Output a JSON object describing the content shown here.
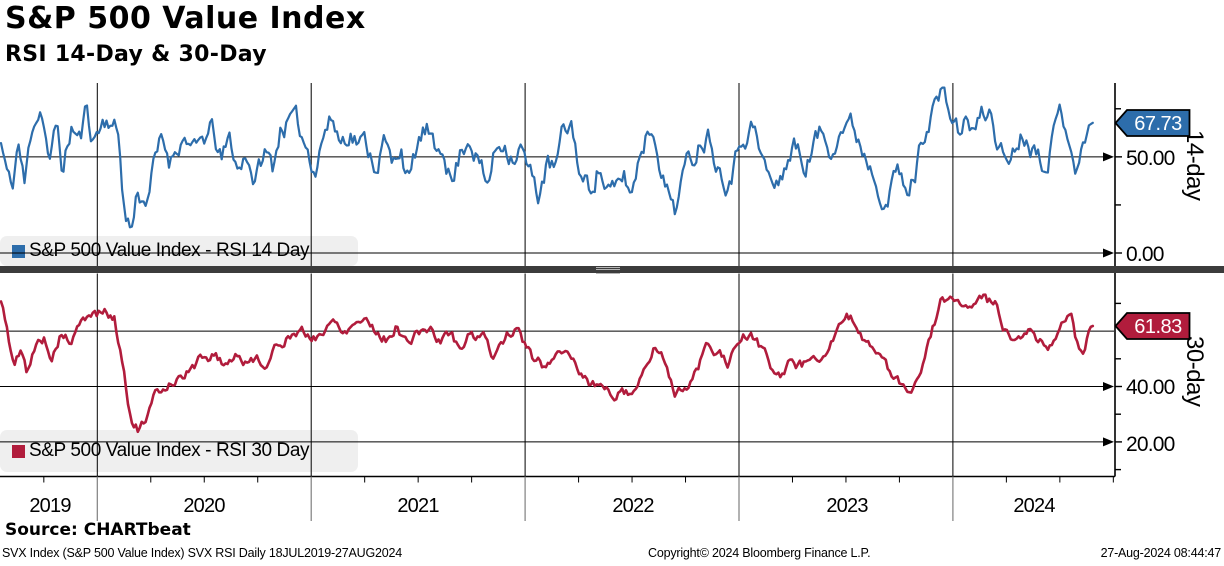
{
  "header": {
    "title": "S&P 500 Value Index",
    "subtitle": "RSI 14-Day & 30-Day"
  },
  "source_label": "Source: CHARTbeat",
  "footer": {
    "left": "SVX Index (S&P 500 Value Index) SVX RSI  Daily 18JUL2019-27AUG2024",
    "center": "Copyright© 2024 Bloomberg Finance L.P.",
    "right": "27-Aug-2024 08:44:47"
  },
  "x_axis": {
    "years": [
      "2019",
      "2020",
      "2021",
      "2022",
      "2023",
      "2024"
    ],
    "gridline_years": [
      2020,
      2021,
      2022,
      2023,
      2024
    ]
  },
  "panels": [
    {
      "side_label": "14-day",
      "legend": "S&P 500 Value Index - RSI 14 Day",
      "badge": "67.73",
      "color": "#2d6dab",
      "tick_labels": [
        "50.00",
        "0.00"
      ]
    },
    {
      "side_label": "30-day",
      "legend": "S&P 500 Value Index - RSI 30 Day",
      "badge": "61.83",
      "color": "#b11c3c",
      "tick_labels": [
        "40.00",
        "20.00"
      ]
    }
  ],
  "chart_data": [
    {
      "type": "line",
      "name": "S&P 500 Value Index - RSI 14 Day",
      "panel": "top",
      "color": "#2d6dab",
      "x_unit": "decimal_year",
      "x_range": [
        2019.55,
        2024.654
      ],
      "ylim": [
        -7,
        92
      ],
      "grid": true,
      "legend_position": "bottom-left",
      "labeled_ticks": [
        {
          "value": 50,
          "label": "50.00"
        },
        {
          "value": 0,
          "label": "0.00"
        }
      ],
      "extra_gridlines": [],
      "minor_ticks": [
        25,
        75
      ],
      "last_value": 67.73,
      "anchors": [
        [
          2019.55,
          57
        ],
        [
          2019.58,
          40
        ],
        [
          2019.6,
          30
        ],
        [
          2019.63,
          58
        ],
        [
          2019.66,
          34
        ],
        [
          2019.7,
          70
        ],
        [
          2019.74,
          78
        ],
        [
          2019.78,
          46
        ],
        [
          2019.81,
          66
        ],
        [
          2019.84,
          42
        ],
        [
          2019.88,
          66
        ],
        [
          2019.92,
          58
        ],
        [
          2019.95,
          74
        ],
        [
          2019.98,
          60
        ],
        [
          2020.02,
          68
        ],
        [
          2020.06,
          72
        ],
        [
          2020.1,
          60
        ],
        [
          2020.13,
          20
        ],
        [
          2020.16,
          13
        ],
        [
          2020.19,
          34
        ],
        [
          2020.22,
          27
        ],
        [
          2020.26,
          44
        ],
        [
          2020.3,
          56
        ],
        [
          2020.34,
          48
        ],
        [
          2020.38,
          60
        ],
        [
          2020.42,
          63
        ],
        [
          2020.46,
          50
        ],
        [
          2020.5,
          58
        ],
        [
          2020.54,
          62
        ],
        [
          2020.58,
          46
        ],
        [
          2020.62,
          57
        ],
        [
          2020.66,
          42
        ],
        [
          2020.7,
          53
        ],
        [
          2020.74,
          38
        ],
        [
          2020.78,
          52
        ],
        [
          2020.82,
          44
        ],
        [
          2020.86,
          68
        ],
        [
          2020.9,
          70
        ],
        [
          2020.94,
          62
        ],
        [
          2020.98,
          55
        ],
        [
          2021.02,
          48
        ],
        [
          2021.06,
          66
        ],
        [
          2021.1,
          70
        ],
        [
          2021.14,
          58
        ],
        [
          2021.18,
          67
        ],
        [
          2021.22,
          60
        ],
        [
          2021.26,
          55
        ],
        [
          2021.3,
          48
        ],
        [
          2021.34,
          60
        ],
        [
          2021.38,
          42
        ],
        [
          2021.42,
          58
        ],
        [
          2021.46,
          36
        ],
        [
          2021.5,
          56
        ],
        [
          2021.54,
          63
        ],
        [
          2021.58,
          46
        ],
        [
          2021.62,
          58
        ],
        [
          2021.66,
          38
        ],
        [
          2021.7,
          54
        ],
        [
          2021.74,
          64
        ],
        [
          2021.78,
          52
        ],
        [
          2021.82,
          33
        ],
        [
          2021.86,
          52
        ],
        [
          2021.9,
          60
        ],
        [
          2021.94,
          55
        ],
        [
          2021.98,
          58
        ],
        [
          2022.02,
          40
        ],
        [
          2022.06,
          30
        ],
        [
          2022.1,
          46
        ],
        [
          2022.14,
          42
        ],
        [
          2022.18,
          60
        ],
        [
          2022.22,
          65
        ],
        [
          2022.26,
          40
        ],
        [
          2022.3,
          32
        ],
        [
          2022.34,
          48
        ],
        [
          2022.38,
          36
        ],
        [
          2022.42,
          28
        ],
        [
          2022.46,
          38
        ],
        [
          2022.5,
          30
        ],
        [
          2022.54,
          55
        ],
        [
          2022.58,
          68
        ],
        [
          2022.62,
          60
        ],
        [
          2022.66,
          35
        ],
        [
          2022.7,
          26
        ],
        [
          2022.74,
          42
        ],
        [
          2022.78,
          48
        ],
        [
          2022.82,
          62
        ],
        [
          2022.86,
          66
        ],
        [
          2022.9,
          50
        ],
        [
          2022.94,
          44
        ],
        [
          2022.98,
          52
        ],
        [
          2023.02,
          66
        ],
        [
          2023.06,
          70
        ],
        [
          2023.1,
          52
        ],
        [
          2023.14,
          38
        ],
        [
          2023.18,
          32
        ],
        [
          2023.22,
          48
        ],
        [
          2023.26,
          58
        ],
        [
          2023.3,
          44
        ],
        [
          2023.34,
          56
        ],
        [
          2023.38,
          62
        ],
        [
          2023.42,
          55
        ],
        [
          2023.46,
          68
        ],
        [
          2023.5,
          72
        ],
        [
          2023.54,
          64
        ],
        [
          2023.58,
          56
        ],
        [
          2023.62,
          48
        ],
        [
          2023.66,
          40
        ],
        [
          2023.7,
          34
        ],
        [
          2023.74,
          45
        ],
        [
          2023.78,
          28
        ],
        [
          2023.82,
          40
        ],
        [
          2023.86,
          62
        ],
        [
          2023.9,
          78
        ],
        [
          2023.94,
          83
        ],
        [
          2023.98,
          75
        ],
        [
          2024.02,
          62
        ],
        [
          2024.06,
          68
        ],
        [
          2024.1,
          64
        ],
        [
          2024.14,
          70
        ],
        [
          2024.18,
          72
        ],
        [
          2024.22,
          55
        ],
        [
          2024.26,
          48
        ],
        [
          2024.3,
          60
        ],
        [
          2024.34,
          65
        ],
        [
          2024.38,
          58
        ],
        [
          2024.42,
          52
        ],
        [
          2024.46,
          62
        ],
        [
          2024.5,
          72
        ],
        [
          2024.54,
          66
        ],
        [
          2024.58,
          48
        ],
        [
          2024.61,
          55
        ],
        [
          2024.64,
          67.73
        ]
      ],
      "render": {
        "points": 560,
        "noise_amp": 5.5,
        "noise_decay": 0.78,
        "seed": 11,
        "clamp": [
          10,
          86
        ],
        "stroke_width": 2.2
      }
    },
    {
      "type": "line",
      "name": "S&P 500 Value Index - RSI 30 Day",
      "panel": "bottom",
      "color": "#b11c3c",
      "x_unit": "decimal_year",
      "x_range": [
        2019.55,
        2024.654
      ],
      "ylim": [
        3,
        79
      ],
      "grid": true,
      "legend_position": "bottom-left",
      "labeled_ticks": [
        {
          "value": 40,
          "label": "40.00"
        },
        {
          "value": 20,
          "label": "20.00"
        }
      ],
      "extra_gridlines": [
        60
      ],
      "minor_ticks": [
        10,
        30,
        50,
        70
      ],
      "last_value": 61.83,
      "anchors": [
        [
          2019.55,
          70
        ],
        [
          2019.58,
          60
        ],
        [
          2019.61,
          47
        ],
        [
          2019.64,
          52
        ],
        [
          2019.67,
          45
        ],
        [
          2019.71,
          54
        ],
        [
          2019.75,
          58
        ],
        [
          2019.79,
          51
        ],
        [
          2019.83,
          60
        ],
        [
          2019.87,
          56
        ],
        [
          2019.91,
          60
        ],
        [
          2019.95,
          64
        ],
        [
          2019.99,
          66
        ],
        [
          2020.04,
          67
        ],
        [
          2020.08,
          64
        ],
        [
          2020.12,
          48
        ],
        [
          2020.16,
          28
        ],
        [
          2020.19,
          25
        ],
        [
          2020.23,
          27
        ],
        [
          2020.27,
          35
        ],
        [
          2020.31,
          39
        ],
        [
          2020.35,
          43
        ],
        [
          2020.4,
          45
        ],
        [
          2020.45,
          47
        ],
        [
          2020.5,
          51
        ],
        [
          2020.55,
          52
        ],
        [
          2020.6,
          48
        ],
        [
          2020.65,
          53
        ],
        [
          2020.7,
          48
        ],
        [
          2020.75,
          51
        ],
        [
          2020.8,
          48
        ],
        [
          2020.85,
          56
        ],
        [
          2020.9,
          60
        ],
        [
          2020.95,
          59
        ],
        [
          2021.0,
          57
        ],
        [
          2021.05,
          60
        ],
        [
          2021.1,
          63
        ],
        [
          2021.15,
          61
        ],
        [
          2021.2,
          64
        ],
        [
          2021.25,
          66
        ],
        [
          2021.3,
          61
        ],
        [
          2021.35,
          58
        ],
        [
          2021.4,
          63
        ],
        [
          2021.45,
          56
        ],
        [
          2021.5,
          59
        ],
        [
          2021.55,
          62
        ],
        [
          2021.6,
          56
        ],
        [
          2021.65,
          60
        ],
        [
          2021.7,
          53
        ],
        [
          2021.75,
          60
        ],
        [
          2021.8,
          58
        ],
        [
          2021.85,
          51
        ],
        [
          2021.9,
          58
        ],
        [
          2021.95,
          61
        ],
        [
          2022.0,
          55
        ],
        [
          2022.05,
          48
        ],
        [
          2022.1,
          46
        ],
        [
          2022.15,
          52
        ],
        [
          2022.2,
          55
        ],
        [
          2022.25,
          47
        ],
        [
          2022.3,
          42
        ],
        [
          2022.35,
          40
        ],
        [
          2022.4,
          37
        ],
        [
          2022.45,
          40
        ],
        [
          2022.5,
          38
        ],
        [
          2022.55,
          46
        ],
        [
          2022.6,
          54
        ],
        [
          2022.65,
          49
        ],
        [
          2022.7,
          40
        ],
        [
          2022.75,
          38
        ],
        [
          2022.8,
          47
        ],
        [
          2022.85,
          54
        ],
        [
          2022.9,
          50
        ],
        [
          2022.95,
          48
        ],
        [
          2023.0,
          55
        ],
        [
          2023.05,
          59
        ],
        [
          2023.1,
          54
        ],
        [
          2023.15,
          47
        ],
        [
          2023.2,
          44
        ],
        [
          2023.25,
          50
        ],
        [
          2023.3,
          48
        ],
        [
          2023.35,
          52
        ],
        [
          2023.4,
          55
        ],
        [
          2023.45,
          58
        ],
        [
          2023.5,
          63
        ],
        [
          2023.55,
          62
        ],
        [
          2023.6,
          57
        ],
        [
          2023.65,
          52
        ],
        [
          2023.7,
          46
        ],
        [
          2023.75,
          40
        ],
        [
          2023.8,
          36
        ],
        [
          2023.85,
          45
        ],
        [
          2023.9,
          60
        ],
        [
          2023.95,
          71
        ],
        [
          2024.0,
          73
        ],
        [
          2024.05,
          67
        ],
        [
          2024.1,
          66
        ],
        [
          2024.15,
          69
        ],
        [
          2024.2,
          68
        ],
        [
          2024.25,
          60
        ],
        [
          2024.3,
          58
        ],
        [
          2024.35,
          62
        ],
        [
          2024.4,
          58
        ],
        [
          2024.45,
          56
        ],
        [
          2024.5,
          63
        ],
        [
          2024.55,
          67
        ],
        [
          2024.58,
          56
        ],
        [
          2024.61,
          52
        ],
        [
          2024.64,
          61.83
        ]
      ],
      "render": {
        "points": 560,
        "noise_amp": 1.8,
        "noise_decay": 0.8,
        "seed": 5,
        "clamp": [
          21,
          77
        ],
        "stroke_width": 2.6
      }
    }
  ]
}
